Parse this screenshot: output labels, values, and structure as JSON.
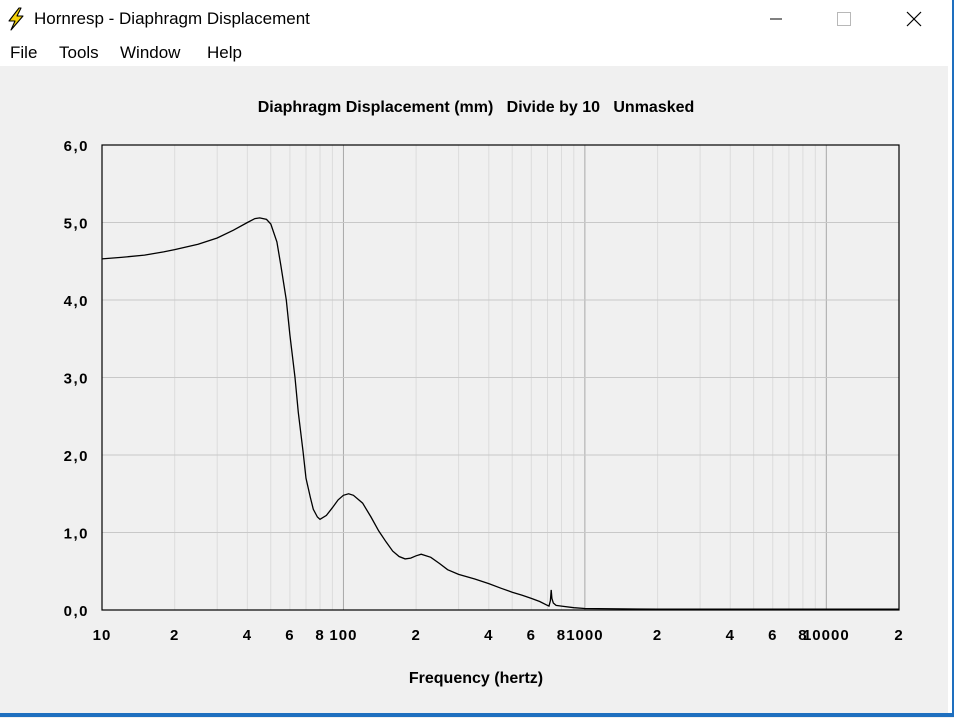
{
  "window": {
    "title": "Hornresp - Diaphragm Displacement",
    "icon": "lightning-bolt-icon",
    "controls": [
      "minimize-icon",
      "maximize-icon",
      "close-icon"
    ]
  },
  "menu": {
    "items": [
      "File",
      "Tools",
      "Window",
      "Help"
    ]
  },
  "colors": {
    "background": "#f0f0f0",
    "plot_background": "#ffffff",
    "grid": "#c8c8c8",
    "curve": "#000000",
    "accent_border": "#1e6fbf",
    "icon_yellow": "#f5d20a"
  },
  "chart_data": {
    "type": "line",
    "title": "Diaphragm Displacement (mm)   Divide by 10   Unmasked",
    "xlabel": "Frequency (hertz)",
    "ylabel": "",
    "xscale": "log",
    "xlim": [
      10,
      20000
    ],
    "ylim": [
      0,
      6
    ],
    "grid": true,
    "yticks": [
      "0,0",
      "1,0",
      "2,0",
      "3,0",
      "4,0",
      "5,0",
      "6,0"
    ],
    "xticks": [
      {
        "value": 10,
        "label": "10"
      },
      {
        "value": 20,
        "label": "2"
      },
      {
        "value": 40,
        "label": "4"
      },
      {
        "value": 60,
        "label": "6"
      },
      {
        "value": 80,
        "label": "8"
      },
      {
        "value": 100,
        "label": "100"
      },
      {
        "value": 200,
        "label": "2"
      },
      {
        "value": 400,
        "label": "4"
      },
      {
        "value": 600,
        "label": "6"
      },
      {
        "value": 800,
        "label": "8"
      },
      {
        "value": 1000,
        "label": "1000"
      },
      {
        "value": 2000,
        "label": "2"
      },
      {
        "value": 4000,
        "label": "4"
      },
      {
        "value": 6000,
        "label": "6"
      },
      {
        "value": 8000,
        "label": "8"
      },
      {
        "value": 10000,
        "label": "10000"
      },
      {
        "value": 20000,
        "label": "2"
      }
    ],
    "series": [
      {
        "x": [
          10,
          12,
          15,
          18,
          20,
          25,
          30,
          35,
          40,
          43,
          45,
          48,
          50,
          53,
          55,
          58,
          60,
          63,
          65,
          68,
          70,
          73,
          75,
          78,
          80,
          85,
          90,
          95,
          100,
          105,
          110,
          120,
          130,
          140,
          150,
          160,
          170,
          180,
          190,
          200,
          210,
          230,
          250,
          270,
          300,
          350,
          400,
          450,
          500,
          550,
          600,
          650,
          700,
          710,
          720,
          725,
          730,
          740,
          760,
          800,
          900,
          1000,
          2000,
          5000,
          10000,
          20000
        ],
        "y": [
          4.53,
          4.55,
          4.58,
          4.62,
          4.65,
          4.72,
          4.8,
          4.9,
          5.0,
          5.05,
          5.06,
          5.04,
          4.98,
          4.75,
          4.45,
          4.0,
          3.55,
          3.0,
          2.55,
          2.05,
          1.7,
          1.45,
          1.3,
          1.2,
          1.17,
          1.22,
          1.32,
          1.42,
          1.48,
          1.5,
          1.48,
          1.38,
          1.2,
          1.02,
          0.88,
          0.76,
          0.69,
          0.66,
          0.67,
          0.7,
          0.72,
          0.68,
          0.6,
          0.52,
          0.46,
          0.4,
          0.34,
          0.28,
          0.23,
          0.19,
          0.15,
          0.11,
          0.06,
          0.05,
          0.12,
          0.26,
          0.15,
          0.09,
          0.06,
          0.05,
          0.03,
          0.02,
          0.01,
          0.01,
          0.01,
          0.01
        ]
      }
    ]
  }
}
